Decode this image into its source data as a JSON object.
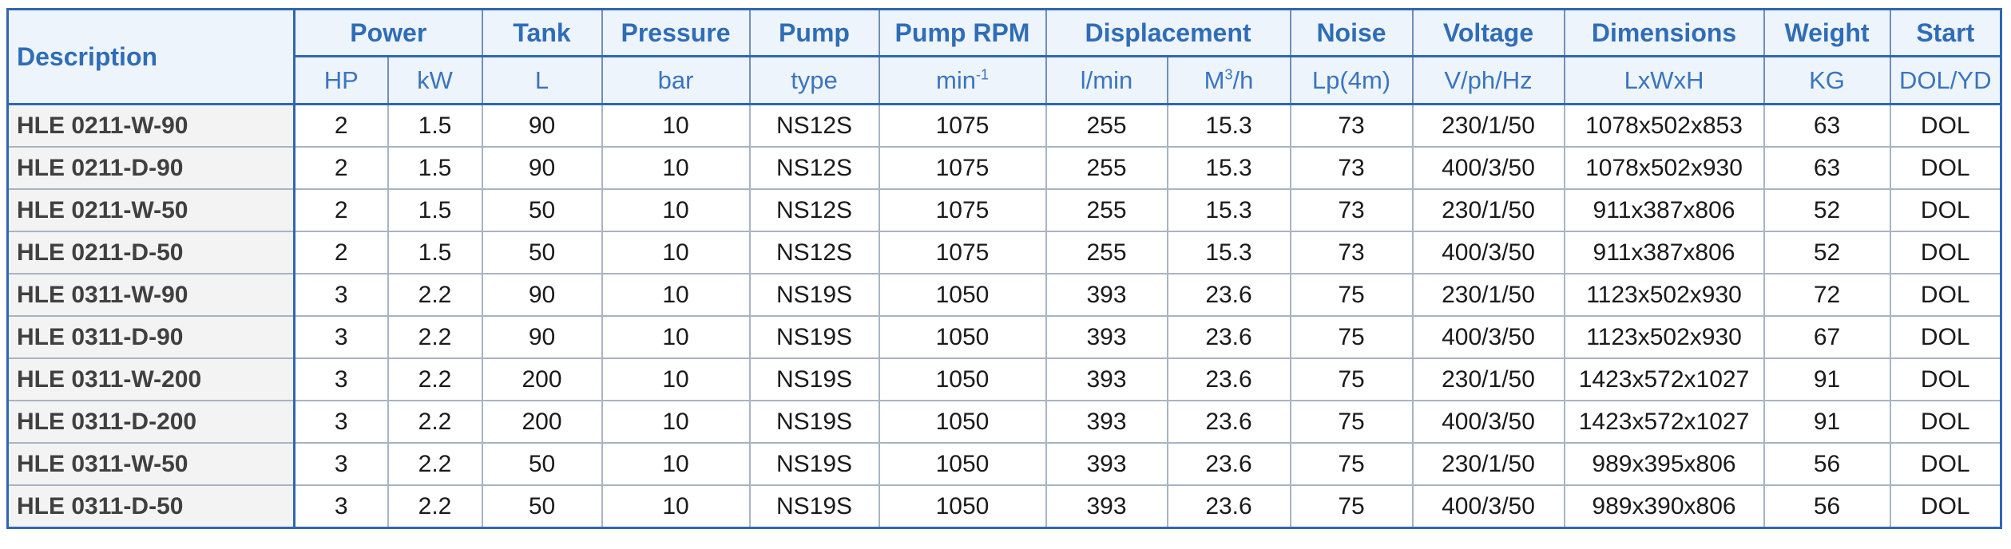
{
  "header_groups": {
    "description": "Description",
    "power": "Power",
    "tank": "Tank",
    "pressure": "Pressure",
    "pump": "Pump",
    "pump_rpm": "Pump RPM",
    "displacement": "Displacement",
    "noise": "Noise",
    "voltage": "Voltage",
    "dimensions": "Dimensions",
    "weight": "Weight",
    "start": "Start"
  },
  "units": {
    "hp": "HP",
    "kw": "kW",
    "tank": "L",
    "pressure": "bar",
    "pump": "type",
    "rpm_base": "min",
    "rpm_sup": "-1",
    "flow_lmin": "l/min",
    "flow_m3h_base": "M",
    "flow_m3h_sup": "3",
    "flow_m3h_tail": "/h",
    "noise": "Lp(4m)",
    "voltage": "V/ph/Hz",
    "dimensions": "LxWxH",
    "weight": "KG",
    "start": "DOL/YD"
  },
  "rows": [
    {
      "description": "HLE 0211-W-90",
      "hp": "2",
      "kw": "1.5",
      "tank": "90",
      "pressure": "10",
      "pump": "NS12S",
      "rpm": "1075",
      "lmin": "255",
      "m3h": "15.3",
      "noise": "73",
      "voltage": "230/1/50",
      "dimensions": "1078x502x853",
      "weight": "63",
      "start": "DOL"
    },
    {
      "description": "HLE 0211-D-90",
      "hp": "2",
      "kw": "1.5",
      "tank": "90",
      "pressure": "10",
      "pump": "NS12S",
      "rpm": "1075",
      "lmin": "255",
      "m3h": "15.3",
      "noise": "73",
      "voltage": "400/3/50",
      "dimensions": "1078x502x930",
      "weight": "63",
      "start": "DOL"
    },
    {
      "description": "HLE 0211-W-50",
      "hp": "2",
      "kw": "1.5",
      "tank": "50",
      "pressure": "10",
      "pump": "NS12S",
      "rpm": "1075",
      "lmin": "255",
      "m3h": "15.3",
      "noise": "73",
      "voltage": "230/1/50",
      "dimensions": "911x387x806",
      "weight": "52",
      "start": "DOL"
    },
    {
      "description": "HLE 0211-D-50",
      "hp": "2",
      "kw": "1.5",
      "tank": "50",
      "pressure": "10",
      "pump": "NS12S",
      "rpm": "1075",
      "lmin": "255",
      "m3h": "15.3",
      "noise": "73",
      "voltage": "400/3/50",
      "dimensions": "911x387x806",
      "weight": "52",
      "start": "DOL"
    },
    {
      "description": "HLE 0311-W-90",
      "hp": "3",
      "kw": "2.2",
      "tank": "90",
      "pressure": "10",
      "pump": "NS19S",
      "rpm": "1050",
      "lmin": "393",
      "m3h": "23.6",
      "noise": "75",
      "voltage": "230/1/50",
      "dimensions": "1123x502x930",
      "weight": "72",
      "start": "DOL"
    },
    {
      "description": "HLE 0311-D-90",
      "hp": "3",
      "kw": "2.2",
      "tank": "90",
      "pressure": "10",
      "pump": "NS19S",
      "rpm": "1050",
      "lmin": "393",
      "m3h": "23.6",
      "noise": "75",
      "voltage": "400/3/50",
      "dimensions": "1123x502x930",
      "weight": "67",
      "start": "DOL"
    },
    {
      "description": "HLE 0311-W-200",
      "hp": "3",
      "kw": "2.2",
      "tank": "200",
      "pressure": "10",
      "pump": "NS19S",
      "rpm": "1050",
      "lmin": "393",
      "m3h": "23.6",
      "noise": "75",
      "voltage": "230/1/50",
      "dimensions": "1423x572x1027",
      "weight": "91",
      "start": "DOL"
    },
    {
      "description": "HLE 0311-D-200",
      "hp": "3",
      "kw": "2.2",
      "tank": "200",
      "pressure": "10",
      "pump": "NS19S",
      "rpm": "1050",
      "lmin": "393",
      "m3h": "23.6",
      "noise": "75",
      "voltage": "400/3/50",
      "dimensions": "1423x572x1027",
      "weight": "91",
      "start": "DOL"
    },
    {
      "description": "HLE 0311-W-50",
      "hp": "3",
      "kw": "2.2",
      "tank": "50",
      "pressure": "10",
      "pump": "NS19S",
      "rpm": "1050",
      "lmin": "393",
      "m3h": "23.6",
      "noise": "75",
      "voltage": "230/1/50",
      "dimensions": "989x395x806",
      "weight": "56",
      "start": "DOL"
    },
    {
      "description": "HLE 0311-D-50",
      "hp": "3",
      "kw": "2.2",
      "tank": "50",
      "pressure": "10",
      "pump": "NS19S",
      "rpm": "1050",
      "lmin": "393",
      "m3h": "23.6",
      "noise": "75",
      "voltage": "400/3/50",
      "dimensions": "989x390x806",
      "weight": "56",
      "start": "DOL"
    }
  ]
}
